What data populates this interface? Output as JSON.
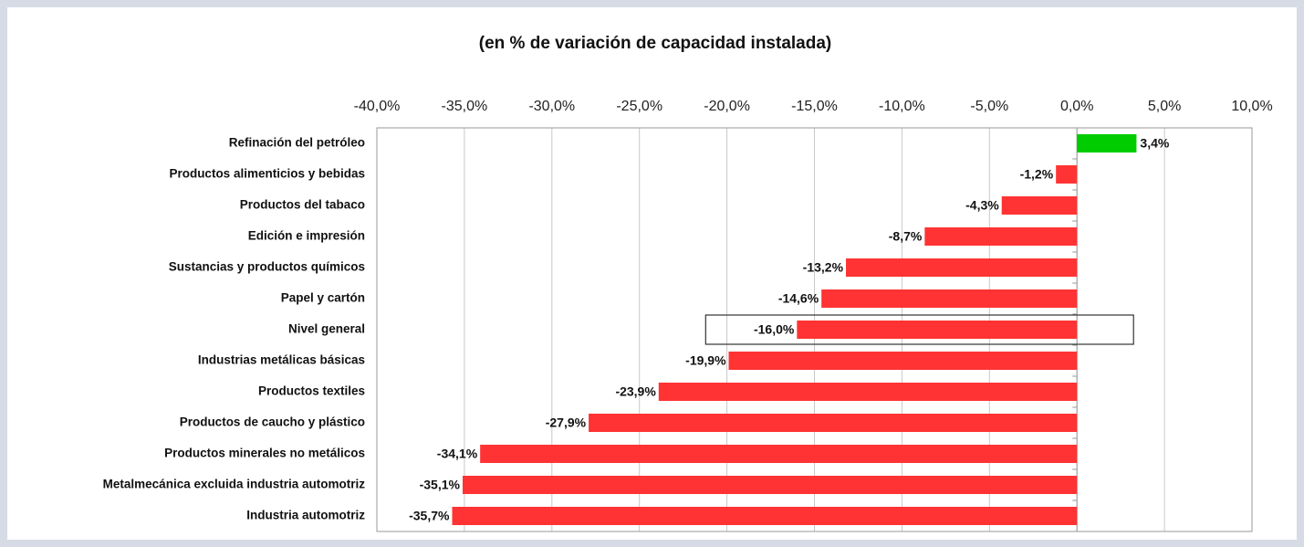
{
  "chart_data": {
    "type": "bar",
    "orientation": "horizontal",
    "title": "(en % de variación de capacidad instalada)",
    "categories": [
      "Refinación del petróleo",
      "Productos alimenticios y bebidas",
      "Productos del tabaco",
      "Edición e impresión",
      "Sustancias y productos químicos",
      "Papel y cartón",
      "Nivel general",
      "Industrias metálicas básicas",
      "Productos textiles",
      "Productos de caucho y plástico",
      "Productos minerales no metálicos",
      "Metalmecánica excluida industria automotriz",
      "Industria automotriz"
    ],
    "values": [
      3.4,
      -1.2,
      -4.3,
      -8.7,
      -13.2,
      -14.6,
      -16.0,
      -19.9,
      -23.9,
      -27.9,
      -34.1,
      -35.1,
      -35.7
    ],
    "value_labels": [
      "3,4%",
      "-1,2%",
      "-4,3%",
      "-8,7%",
      "-13,2%",
      "-14,6%",
      "-16,0%",
      "-19,9%",
      "-23,9%",
      "-27,9%",
      "-34,1%",
      "-35,1%",
      "-35,7%"
    ],
    "colors": [
      "#00cc00",
      "#ff3333",
      "#ff3333",
      "#ff3333",
      "#ff3333",
      "#ff3333",
      "#ff3333",
      "#ff3333",
      "#ff3333",
      "#ff3333",
      "#ff3333",
      "#ff3333",
      "#ff3333"
    ],
    "xlim": [
      -40,
      10
    ],
    "xticks": [
      {
        "value": -40,
        "label": "-40,0%"
      },
      {
        "value": -35,
        "label": "-35,0%"
      },
      {
        "value": -30,
        "label": "-30,0%"
      },
      {
        "value": -25,
        "label": "-25,0%"
      },
      {
        "value": -20,
        "label": "-20,0%"
      },
      {
        "value": -15,
        "label": "-15,0%"
      },
      {
        "value": -10,
        "label": "-10,0%"
      },
      {
        "value": -5,
        "label": "-5,0%"
      },
      {
        "value": 0,
        "label": "0,0%"
      },
      {
        "value": 5,
        "label": "5,0%"
      },
      {
        "value": 10,
        "label": "10,0%"
      }
    ],
    "grid": true,
    "highlight_index": 6
  }
}
